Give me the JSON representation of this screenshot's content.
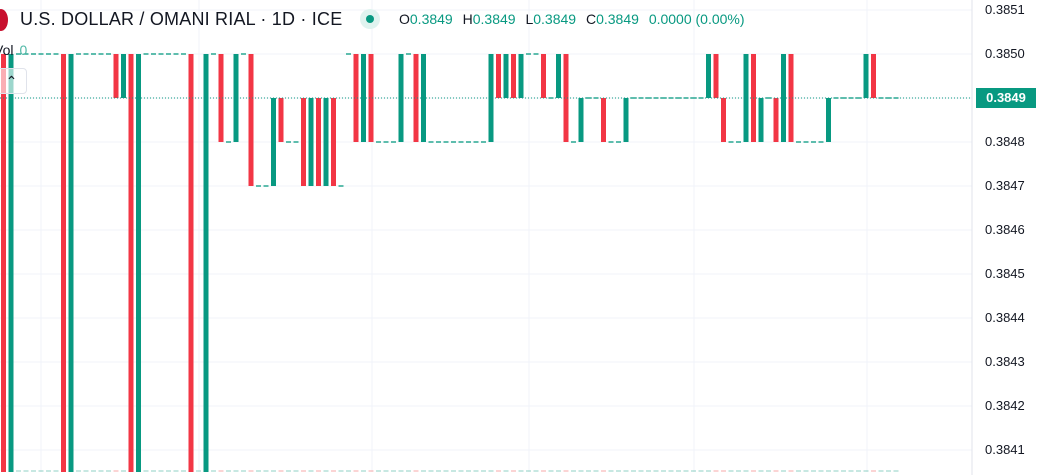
{
  "header": {
    "title": "U.S. DOLLAR / OMANI RIAL · 1D · ICE",
    "status": "market-open-dot",
    "ohlc": [
      {
        "k": "O",
        "v": "0.3849"
      },
      {
        "k": "H",
        "v": "0.3849"
      },
      {
        "k": "L",
        "v": "0.3849"
      },
      {
        "k": "C",
        "v": "0.3849"
      }
    ],
    "change": "0.0000 (0.00%)"
  },
  "volume": {
    "label": "Vol",
    "value": "0"
  },
  "colors": {
    "up": "#089981",
    "down": "#F23645",
    "grid": "#f0f3fa"
  },
  "chart_data": {
    "type": "candlestick",
    "interval": "1D",
    "y_ticks": [
      "0.3851",
      "0.3850",
      "0.3849",
      "0.3848",
      "0.3847",
      "0.3846",
      "0.3845",
      "0.3844",
      "0.3843",
      "0.3842",
      "0.3841"
    ],
    "last_price": "0.3849",
    "candles": [
      [
        0.385,
        0.384
      ],
      [
        0.384,
        0.385
      ],
      [
        0.385,
        0.385
      ],
      [
        0.385,
        0.385
      ],
      [
        0.385,
        0.385
      ],
      [
        0.385,
        0.385
      ],
      [
        0.385,
        0.385
      ],
      [
        0.385,
        0.385
      ],
      [
        0.385,
        0.384
      ],
      [
        0.384,
        0.385
      ],
      [
        0.385,
        0.385
      ],
      [
        0.385,
        0.385
      ],
      [
        0.385,
        0.385
      ],
      [
        0.385,
        0.385
      ],
      [
        0.385,
        0.385
      ],
      [
        0.385,
        0.3849
      ],
      [
        0.3849,
        0.385
      ],
      [
        0.385,
        0.384
      ],
      [
        0.384,
        0.385
      ],
      [
        0.385,
        0.385
      ],
      [
        0.385,
        0.385
      ],
      [
        0.385,
        0.385
      ],
      [
        0.385,
        0.385
      ],
      [
        0.385,
        0.385
      ],
      [
        0.385,
        0.385
      ],
      [
        0.385,
        0.384
      ],
      [
        0.384,
        0.384
      ],
      [
        0.384,
        0.385
      ],
      [
        0.385,
        0.385
      ],
      [
        0.385,
        0.3848
      ],
      [
        0.3848,
        0.3848
      ],
      [
        0.3848,
        0.385
      ],
      [
        0.385,
        0.385
      ],
      [
        0.385,
        0.3847
      ],
      [
        0.3847,
        0.3847
      ],
      [
        0.3847,
        0.3847
      ],
      [
        0.3847,
        0.3849
      ],
      [
        0.3849,
        0.3848
      ],
      [
        0.3848,
        0.3848
      ],
      [
        0.3848,
        0.3848
      ],
      [
        0.3849,
        0.3847
      ],
      [
        0.3847,
        0.3849
      ],
      [
        0.3849,
        0.3847
      ],
      [
        0.3847,
        0.3849
      ],
      [
        0.3849,
        0.3847
      ],
      [
        0.3847,
        0.3847
      ],
      [
        0.385,
        0.385
      ],
      [
        0.385,
        0.3848
      ],
      [
        0.3848,
        0.385
      ],
      [
        0.385,
        0.3848
      ],
      [
        0.3848,
        0.3848
      ],
      [
        0.3848,
        0.3848
      ],
      [
        0.3848,
        0.3848
      ],
      [
        0.3848,
        0.385
      ],
      [
        0.385,
        0.385
      ],
      [
        0.385,
        0.3848
      ],
      [
        0.3848,
        0.385
      ],
      [
        0.3848,
        0.3848
      ],
      [
        0.3848,
        0.3848
      ],
      [
        0.3848,
        0.3848
      ],
      [
        0.3848,
        0.3848
      ],
      [
        0.3848,
        0.3848
      ],
      [
        0.3848,
        0.3848
      ],
      [
        0.3848,
        0.3848
      ],
      [
        0.3848,
        0.3848
      ],
      [
        0.3848,
        0.385
      ],
      [
        0.385,
        0.3849
      ],
      [
        0.3849,
        0.385
      ],
      [
        0.385,
        0.3849
      ],
      [
        0.3849,
        0.385
      ],
      [
        0.385,
        0.385
      ],
      [
        0.385,
        0.385
      ],
      [
        0.385,
        0.3849
      ],
      [
        0.3849,
        0.3849
      ],
      [
        0.3849,
        0.385
      ],
      [
        0.385,
        0.3848
      ],
      [
        0.3848,
        0.3848
      ],
      [
        0.3848,
        0.3849
      ],
      [
        0.3849,
        0.3849
      ],
      [
        0.3849,
        0.3849
      ],
      [
        0.3849,
        0.3848
      ],
      [
        0.3848,
        0.3848
      ],
      [
        0.3848,
        0.3848
      ],
      [
        0.3848,
        0.3849
      ],
      [
        0.3849,
        0.3849
      ],
      [
        0.3849,
        0.3849
      ],
      [
        0.3849,
        0.3849
      ],
      [
        0.3849,
        0.3849
      ],
      [
        0.3849,
        0.3849
      ],
      [
        0.3849,
        0.3849
      ],
      [
        0.3849,
        0.3849
      ],
      [
        0.3849,
        0.3849
      ],
      [
        0.3849,
        0.3849
      ],
      [
        0.3849,
        0.3849
      ],
      [
        0.3849,
        0.385
      ],
      [
        0.385,
        0.3849
      ],
      [
        0.3849,
        0.3848
      ],
      [
        0.3848,
        0.3848
      ],
      [
        0.3848,
        0.3848
      ],
      [
        0.3848,
        0.385
      ],
      [
        0.385,
        0.3848
      ],
      [
        0.3848,
        0.3849
      ],
      [
        0.3849,
        0.3849
      ],
      [
        0.3849,
        0.3848
      ],
      [
        0.3848,
        0.385
      ],
      [
        0.385,
        0.3848
      ],
      [
        0.3848,
        0.3848
      ],
      [
        0.3848,
        0.3848
      ],
      [
        0.3848,
        0.3848
      ],
      [
        0.3848,
        0.3848
      ],
      [
        0.3848,
        0.3849
      ],
      [
        0.3849,
        0.3849
      ],
      [
        0.3849,
        0.3849
      ],
      [
        0.3849,
        0.3849
      ],
      [
        0.3849,
        0.3849
      ],
      [
        0.3849,
        0.385
      ],
      [
        0.385,
        0.3849
      ],
      [
        0.3849,
        0.3849
      ],
      [
        0.3849,
        0.3849
      ],
      [
        0.3849,
        0.3849
      ]
    ],
    "volume": 0
  }
}
